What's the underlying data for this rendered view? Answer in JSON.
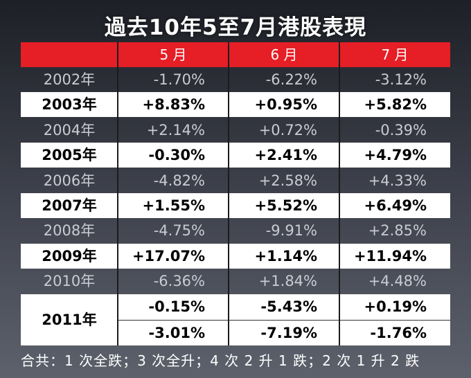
{
  "title": "過去10年5至7月港股表現",
  "chart_data": {
    "type": "table",
    "columns": [
      "",
      "5 月",
      "6 月",
      "7 月"
    ],
    "rows": [
      {
        "year": "2002年",
        "values": [
          "-1.70%",
          "-6.22%",
          "-3.12%"
        ],
        "style": "dark"
      },
      {
        "year": "2003年",
        "values": [
          "+8.83%",
          "+0.95%",
          "+5.82%"
        ],
        "style": "light"
      },
      {
        "year": "2004年",
        "values": [
          "+2.14%",
          "+0.72%",
          "-0.39%"
        ],
        "style": "dark"
      },
      {
        "year": "2005年",
        "values": [
          "-0.30%",
          "+2.41%",
          "+4.79%"
        ],
        "style": "light"
      },
      {
        "year": "2006年",
        "values": [
          "-4.82%",
          "+2.58%",
          "+4.33%"
        ],
        "style": "dark"
      },
      {
        "year": "2007年",
        "values": [
          "+1.55%",
          "+5.52%",
          "+6.49%"
        ],
        "style": "light"
      },
      {
        "year": "2008年",
        "values": [
          "-4.75%",
          "-9.91%",
          "+2.85%"
        ],
        "style": "dark"
      },
      {
        "year": "2009年",
        "values": [
          "+17.07%",
          "+1.14%",
          "+11.94%"
        ],
        "style": "light"
      },
      {
        "year": "2010年",
        "values": [
          "-6.36%",
          "+1.84%",
          "+4.48%"
        ],
        "style": "dark"
      }
    ],
    "row_2011": {
      "year": "2011年",
      "values_a": [
        "-0.15%",
        "-5.43%",
        "+0.19%"
      ],
      "values_b": [
        "-3.01%",
        "-7.19%",
        "-1.76%"
      ]
    },
    "footer": "合共：1 次全跌；3 次全升；4 次 2 升 1 跌；2 次 1 升 2 跌"
  },
  "colors": {
    "header_red": "#e61e25",
    "light_row": "#ffffff",
    "dark_text": "#c9ccd3"
  }
}
